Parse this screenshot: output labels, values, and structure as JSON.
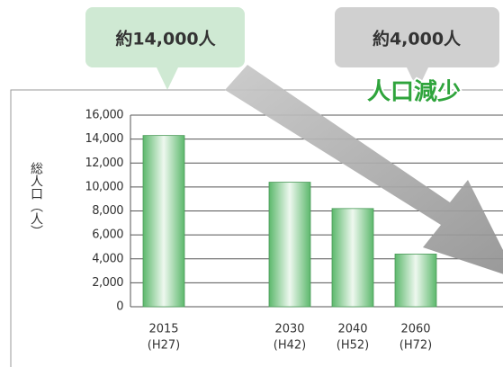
{
  "chart_data": {
    "type": "bar",
    "y_axis_label": "総人口（人）",
    "categories": [
      "2015",
      null,
      "2030",
      "2040",
      "2060"
    ],
    "category_sublabels": [
      "(H27)",
      null,
      "(H42)",
      "(H52)",
      "(H72)"
    ],
    "values": [
      14300,
      null,
      10400,
      8200,
      4400
    ],
    "color": "#5cb86c",
    "ylim": [
      0,
      16000
    ],
    "yticks": [
      0,
      {
        "value": 2000,
        "label": "2,000"
      },
      {
        "value": 4000,
        "label": "4,000"
      },
      {
        "value": 6000,
        "label": "6,000"
      },
      {
        "value": 8000,
        "label": "8,000"
      },
      {
        "value": 10000,
        "label": "10,000"
      },
      {
        "value": 12000,
        "label": "12,000"
      },
      {
        "value": 14000,
        "label": "14,000"
      },
      {
        "value": 16000,
        "label": "16,000"
      }
    ],
    "grid": true,
    "annotations": [
      "約14,000人",
      "約4,000人",
      "人口減少"
    ]
  }
}
